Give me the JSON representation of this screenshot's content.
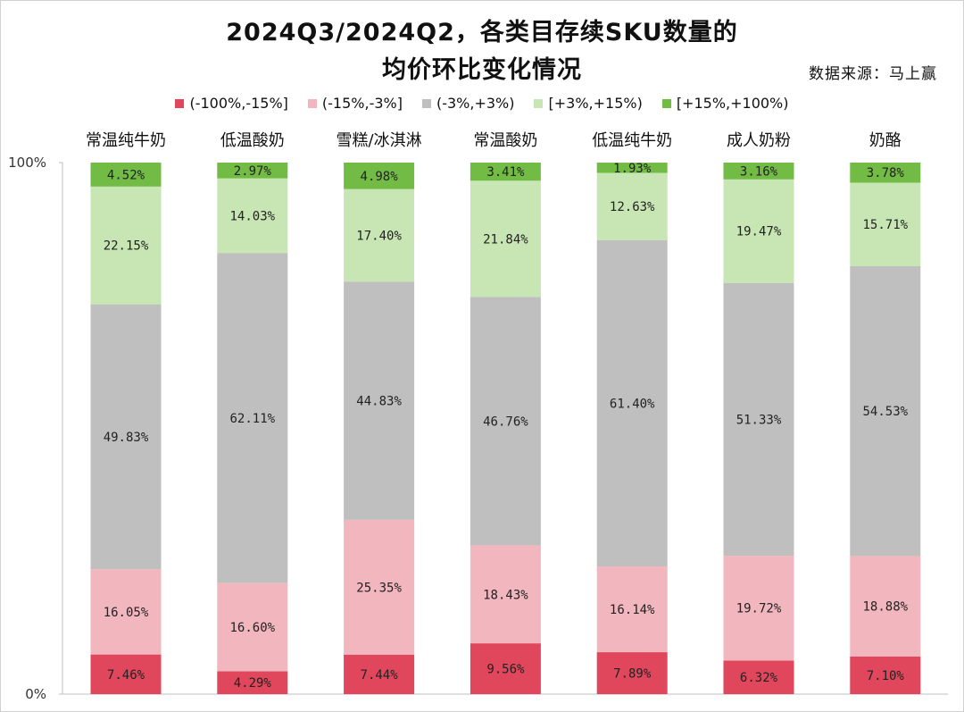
{
  "title_line1": "2024Q3/2024Q2，各类目存续SKU数量的",
  "title_line2": "均价环比变化情况",
  "source": "数据来源：马上赢",
  "colors": {
    "(-100%,-15%]": "#e0475c",
    "(-15%,-3%]": "#f2b6be",
    "(-3%,+3%)": "#bfbfbf",
    "[+3%,+15%)": "#c8e6b4",
    "[+15%,+100%)": "#72bb44"
  },
  "chart_data": {
    "type": "bar",
    "stacked": true,
    "percent": true,
    "categories": [
      "常温纯牛奶",
      "低温酸奶",
      "雪糕/冰淇淋",
      "常温酸奶",
      "低温纯牛奶",
      "成人奶粉",
      "奶酪"
    ],
    "series": [
      {
        "name": "(-100%,-15%]",
        "values": [
          7.46,
          4.29,
          7.44,
          9.56,
          7.89,
          6.32,
          7.1
        ],
        "labels": [
          "7.46%",
          "4.29%",
          "7.44%",
          "9.56%",
          "7.89%",
          "6.32%",
          "7.10%"
        ]
      },
      {
        "name": "(-15%,-3%]",
        "values": [
          16.05,
          16.6,
          25.35,
          18.43,
          16.14,
          19.72,
          18.88
        ],
        "labels": [
          "16.05%",
          "16.60%",
          "25.35%",
          "18.43%",
          "16.14%",
          "19.72%",
          "18.88%"
        ]
      },
      {
        "name": "(-3%,+3%)",
        "values": [
          49.83,
          62.11,
          44.83,
          46.76,
          61.4,
          51.33,
          54.53
        ],
        "labels": [
          "49.83%",
          "62.11%",
          "44.83%",
          "46.76%",
          "61.40%",
          "51.33%",
          "54.53%"
        ]
      },
      {
        "name": "[+3%,+15%)",
        "values": [
          22.15,
          14.03,
          17.4,
          21.84,
          12.63,
          19.47,
          15.71
        ],
        "labels": [
          "22.15%",
          "14.03%",
          "17.40%",
          "21.84%",
          "12.63%",
          "19.47%",
          "15.71%"
        ]
      },
      {
        "name": "[+15%,+100%)",
        "values": [
          4.52,
          2.97,
          4.98,
          3.41,
          1.93,
          3.16,
          3.78
        ],
        "labels": [
          "4.52%",
          "2.97%",
          "4.98%",
          "3.41%",
          "1.93%",
          "3.16%",
          "3.78%"
        ]
      }
    ],
    "ylim": [
      0,
      100
    ],
    "yticks": [
      "0%",
      "100%"
    ],
    "category_labels_position": "top",
    "legend_position": "top",
    "grid": false
  }
}
